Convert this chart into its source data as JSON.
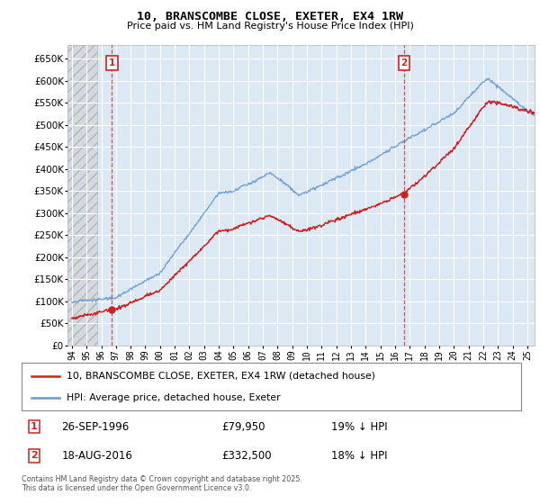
{
  "title_line1": "10, BRANSCOMBE CLOSE, EXETER, EX4 1RW",
  "title_line2": "Price paid vs. HM Land Registry's House Price Index (HPI)",
  "ylim": [
    0,
    680000
  ],
  "yticks": [
    0,
    50000,
    100000,
    150000,
    200000,
    250000,
    300000,
    350000,
    400000,
    450000,
    500000,
    550000,
    600000,
    650000
  ],
  "xlim_start": 1993.7,
  "xlim_end": 2025.5,
  "background_color": "#ffffff",
  "plot_bg_color": "#dce9f5",
  "grid_color": "#ffffff",
  "hpi_color": "#6699cc",
  "price_color": "#cc2222",
  "hatch_end": 1995.75,
  "marker1_year": 1996.73,
  "marker1_price": 79950,
  "marker1_label": "1",
  "marker1_date": "26-SEP-1996",
  "marker1_hpi_diff": "19% ↓ HPI",
  "marker2_year": 2016.62,
  "marker2_price": 332500,
  "marker2_label": "2",
  "marker2_date": "18-AUG-2016",
  "marker2_hpi_diff": "18% ↓ HPI",
  "legend_label1": "10, BRANSCOMBE CLOSE, EXETER, EX4 1RW (detached house)",
  "legend_label2": "HPI: Average price, detached house, Exeter",
  "footer": "Contains HM Land Registry data © Crown copyright and database right 2025.\nThis data is licensed under the Open Government Licence v3.0."
}
